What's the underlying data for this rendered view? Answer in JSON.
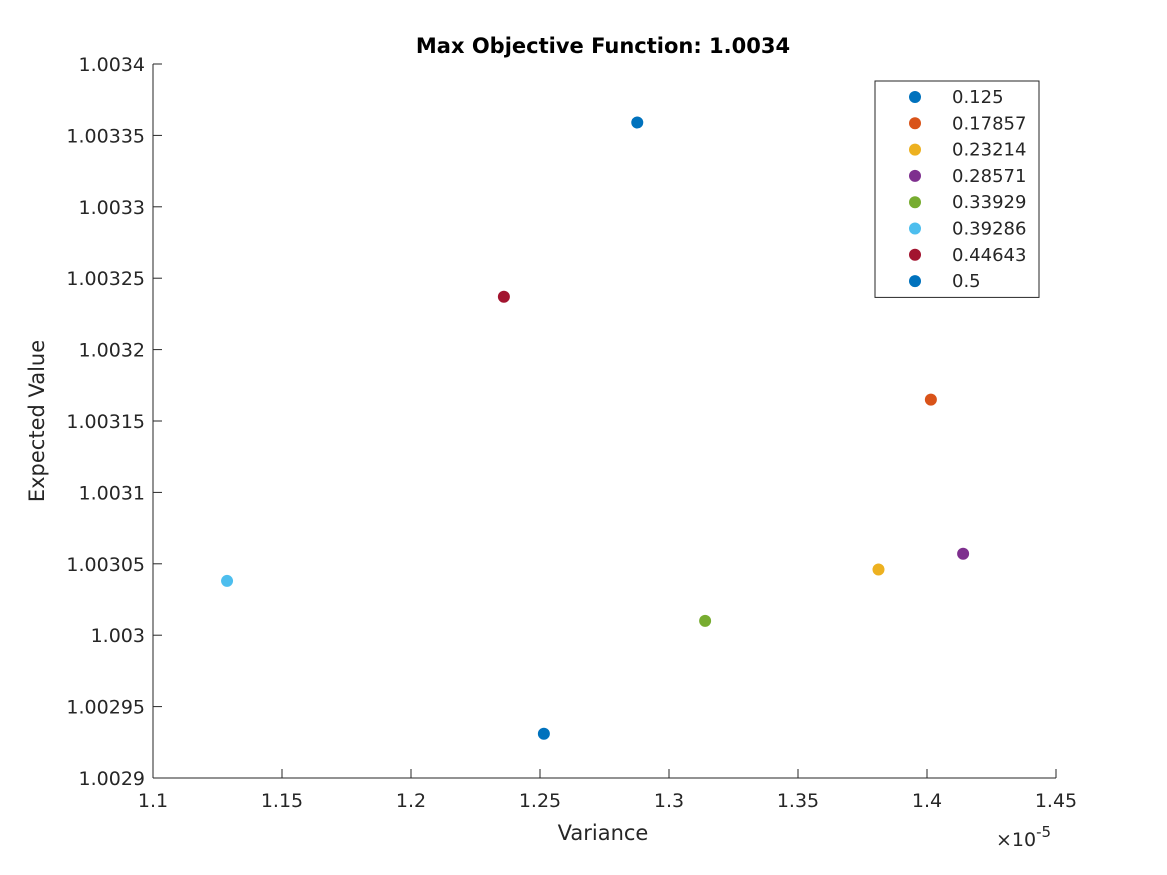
{
  "chart_data": {
    "type": "scatter",
    "title": "Max Objective Function: 1.0034",
    "xlabel": "Variance",
    "ylabel": "Expected Value",
    "x_exponent_label": "×10",
    "x_exponent_power": "-5",
    "xlim": [
      1.1,
      1.45
    ],
    "ylim": [
      1.0029,
      1.0034
    ],
    "x_ticks": [
      1.1,
      1.15,
      1.2,
      1.25,
      1.3,
      1.35,
      1.4,
      1.45
    ],
    "x_tick_labels": [
      "1.1",
      "1.15",
      "1.2",
      "1.25",
      "1.3",
      "1.35",
      "1.4",
      "1.45"
    ],
    "y_ticks": [
      1.0029,
      1.00295,
      1.003,
      1.00305,
      1.0031,
      1.00315,
      1.0032,
      1.00325,
      1.0033,
      1.00335,
      1.0034
    ],
    "y_tick_labels": [
      "1.0029",
      "1.00295",
      "1.003",
      "1.00305",
      "1.0031",
      "1.00315",
      "1.0032",
      "1.00325",
      "1.0033",
      "1.00335",
      "1.0034"
    ],
    "grid": false,
    "legend_position": "top-right",
    "series": [
      {
        "name": "0.125",
        "color": "#0072BD",
        "x": 1.2515,
        "y": 1.002931
      },
      {
        "name": "0.17857",
        "color": "#D95319",
        "x": 1.4015,
        "y": 1.003165
      },
      {
        "name": "0.23214",
        "color": "#EDB120",
        "x": 1.3812,
        "y": 1.003046
      },
      {
        "name": "0.28571",
        "color": "#7E2F8E",
        "x": 1.414,
        "y": 1.003057
      },
      {
        "name": "0.33929",
        "color": "#77AC30",
        "x": 1.314,
        "y": 1.00301
      },
      {
        "name": "0.39286",
        "color": "#4DBEEE",
        "x": 1.1287,
        "y": 1.003038
      },
      {
        "name": "0.44643",
        "color": "#A2142F",
        "x": 1.236,
        "y": 1.003237
      },
      {
        "name": "0.5",
        "color": "#0072BD",
        "x": 1.2877,
        "y": 1.003359
      }
    ]
  }
}
